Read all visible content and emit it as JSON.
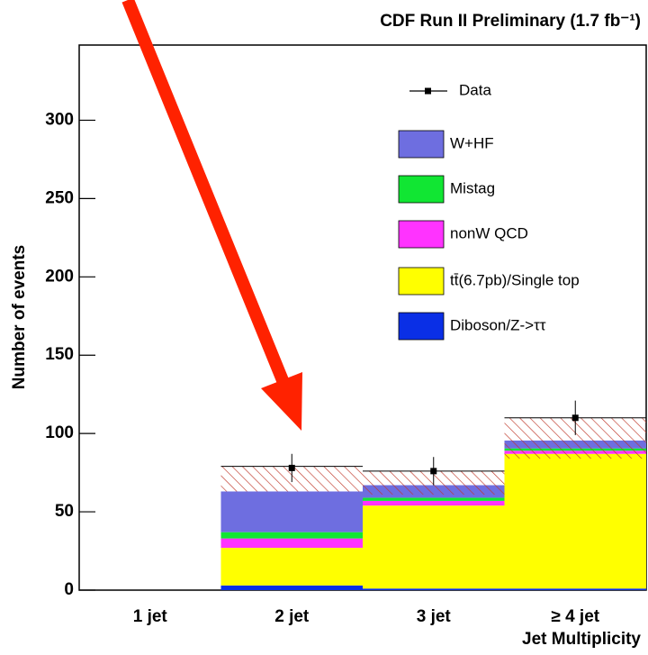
{
  "chart_data": {
    "type": "stacked_hist",
    "title": "CDF Run II Preliminary (1.7 fb⁻¹)",
    "xlabel": "Jet Multiplicity",
    "ylabel": "Number of events",
    "categories": [
      "1 jet",
      "2 jet",
      "3 jet",
      "≥ 4 jet"
    ],
    "ylim": [
      0,
      348
    ],
    "yticks": [
      0,
      50,
      100,
      150,
      200,
      250,
      300
    ],
    "series": [
      {
        "name": "Diboson/Z->ττ",
        "color": "#0a2fe6",
        "values": [
          0,
          3,
          1,
          1
        ]
      },
      {
        "name": "tt̄(6.7pb)/Single top",
        "color": "#ffff00",
        "values": [
          0,
          24,
          53,
          86
        ]
      },
      {
        "name": "nonW QCD",
        "color": "#ff33ff",
        "values": [
          0,
          6,
          3,
          2
        ]
      },
      {
        "name": "Mistag",
        "color": "#11e633",
        "values": [
          0,
          4,
          2,
          1.5
        ]
      },
      {
        "name": "W+HF",
        "color": "#6e6ee0",
        "values": [
          0,
          26,
          8,
          5
        ]
      }
    ],
    "band": {
      "color": "#c0392b",
      "low": [
        null,
        63,
        61,
        84
      ],
      "high": [
        null,
        79,
        76,
        110
      ]
    },
    "data": {
      "name": "Data",
      "values": [
        null,
        78,
        76,
        110
      ],
      "errors": [
        null,
        9,
        9,
        11
      ]
    }
  }
}
